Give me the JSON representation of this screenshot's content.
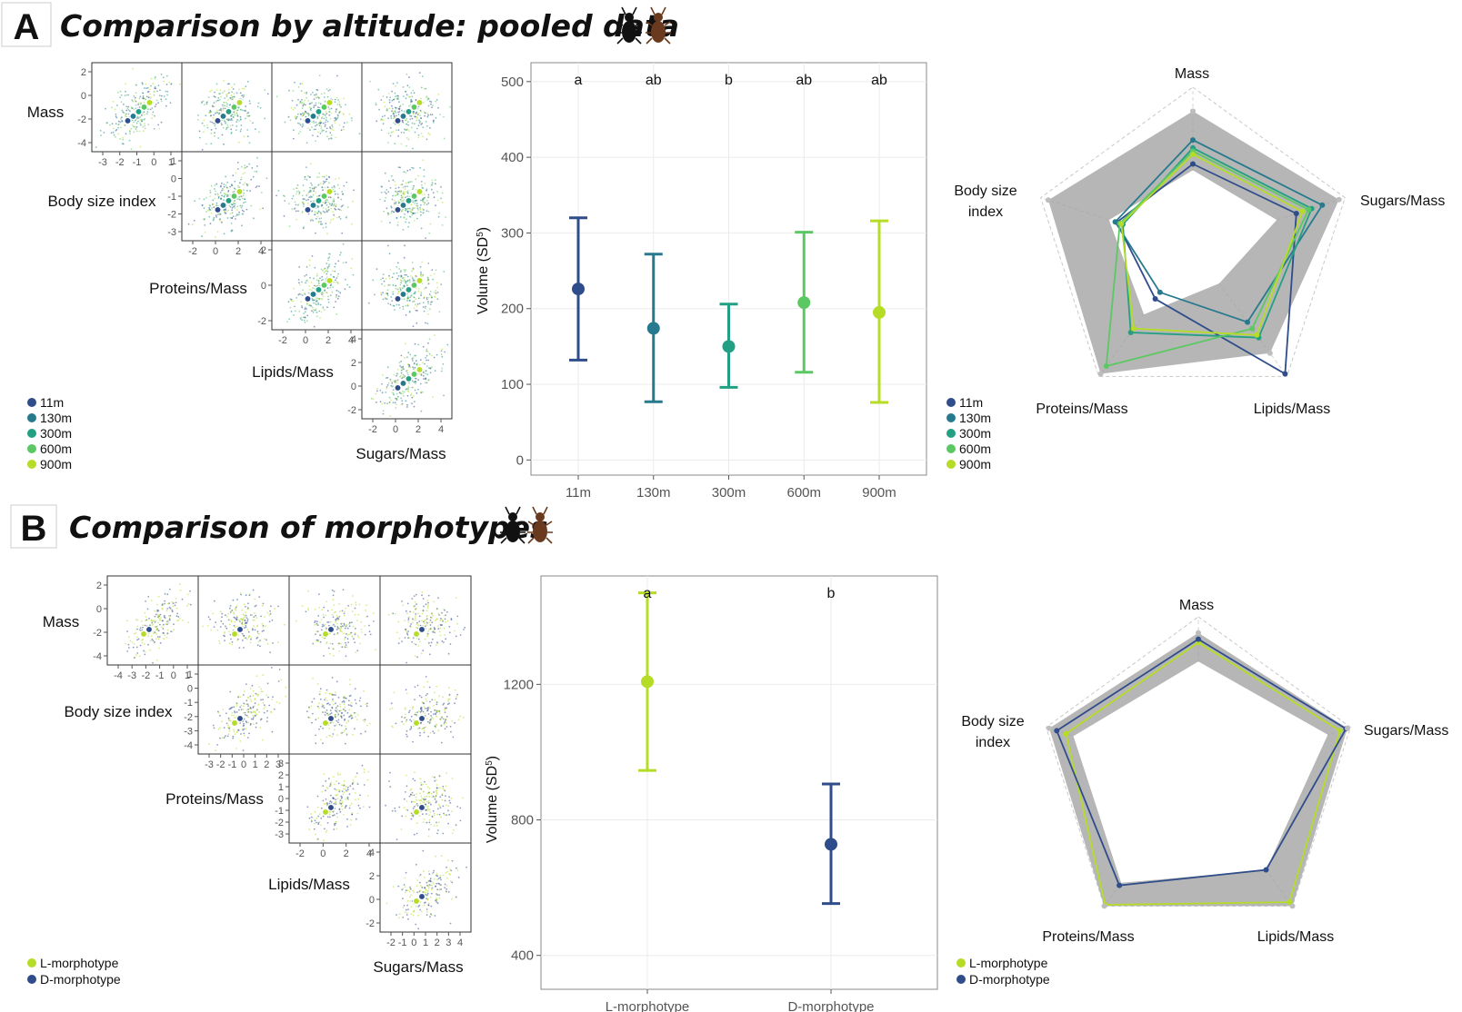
{
  "panels": [
    {
      "letter": "A",
      "title": "Comparison by altitude: pooled data",
      "groups": [
        "11m",
        "130m",
        "300m",
        "600m",
        "900m"
      ],
      "colors": {
        "11m": "#2f4d8a",
        "130m": "#277a8e",
        "300m": "#23a083",
        "600m": "#5cc863",
        "900m": "#b5dc26"
      },
      "variables": [
        "Mass",
        "Body size index",
        "Proteins/Mass",
        "Lipids/Mass",
        "Sugars/Mass"
      ]
    },
    {
      "letter": "B",
      "title": "Comparison of morphotypes",
      "groups": [
        "L-morphotype",
        "D-morphotype"
      ],
      "colors": {
        "L-morphotype": "#b5dc26",
        "D-morphotype": "#2f4d8a"
      },
      "variables": [
        "Mass",
        "Body size index",
        "Proteins/Mass",
        "Lipids/Mass",
        "Sugars/Mass"
      ]
    }
  ],
  "chart_data": [
    {
      "type": "scatter",
      "subtype": "pairs-matrix",
      "panel": "A",
      "variables": [
        "Mass",
        "Body size index",
        "Proteins/Mass",
        "Lipids/Mass",
        "Sugars/Mass"
      ],
      "series_names": [
        "11m",
        "130m",
        "300m",
        "600m",
        "900m"
      ],
      "ticks": {
        "Mass": [
          "2",
          "0",
          "-2",
          "-4"
        ],
        "Body size index": [
          "1",
          "0",
          "-1",
          "-2",
          "-3"
        ],
        "Proteins/Mass": [
          "2",
          "0",
          "-2"
        ],
        "Lipids/Mass": [
          "4",
          "2",
          "0",
          "-2"
        ],
        "x_Mass": [
          "-3",
          "-2",
          "-1",
          "0",
          "1"
        ],
        "x_Body size index": [
          "-2",
          "0",
          "2",
          "4"
        ],
        "x_Proteins/Mass": [
          "-2",
          "0",
          "2",
          "4"
        ],
        "x_Lipids/Mass": [
          "-2",
          "0",
          "2",
          "4"
        ]
      }
    },
    {
      "type": "scatter",
      "subtype": "point-errorbar",
      "panel": "A",
      "categories": [
        "11m",
        "130m",
        "300m",
        "600m",
        "900m"
      ],
      "values": [
        226,
        174,
        150,
        208,
        195
      ],
      "lower": [
        132,
        77,
        96,
        116,
        76
      ],
      "upper": [
        320,
        272,
        206,
        301,
        316
      ],
      "letters": [
        "a",
        "ab",
        "b",
        "ab",
        "ab"
      ],
      "ylabel": "Volume (SD",
      "ylabel_sup": "5",
      "ylabel_end": ")",
      "ylim": [
        -20,
        525
      ],
      "yticks": [
        0,
        100,
        200,
        300,
        400,
        500
      ],
      "grid": true
    },
    {
      "type": "radar",
      "panel": "A",
      "axes": [
        "Mass",
        "Sugars/Mass",
        "Lipids/Mass",
        "Proteins/Mass",
        "Body size index"
      ],
      "band_outer": [
        0.85,
        0.96,
        0.82,
        0.98,
        0.95
      ],
      "band_inner": [
        0.48,
        0.55,
        0.28,
        0.52,
        0.55
      ],
      "series": [
        {
          "name": "11m",
          "values": [
            0.52,
            0.68,
            0.98,
            0.4,
            0.5
          ]
        },
        {
          "name": "130m",
          "values": [
            0.67,
            0.85,
            0.58,
            0.35,
            0.51
          ]
        },
        {
          "name": "300m",
          "values": [
            0.62,
            0.78,
            0.7,
            0.66,
            0.46
          ]
        },
        {
          "name": "600m",
          "values": [
            0.6,
            0.76,
            0.63,
            0.92,
            0.48
          ]
        },
        {
          "name": "900m",
          "values": [
            0.58,
            0.72,
            0.68,
            0.63,
            0.47
          ]
        }
      ]
    },
    {
      "type": "scatter",
      "subtype": "pairs-matrix",
      "panel": "B",
      "variables": [
        "Mass",
        "Body size index",
        "Proteins/Mass",
        "Lipids/Mass",
        "Sugars/Mass"
      ],
      "series_names": [
        "L-morphotype",
        "D-morphotype"
      ],
      "ticks": {
        "Mass": [
          "2",
          "0",
          "-2",
          "-4"
        ],
        "Body size index": [
          "1",
          "0",
          "-1",
          "-2",
          "-3",
          "-4"
        ],
        "Proteins/Mass": [
          "3",
          "2",
          "1",
          "0",
          "-1",
          "-2",
          "-3"
        ],
        "Lipids/Mass": [
          "4",
          "2",
          "0",
          "-2"
        ],
        "x_Mass": [
          "-4",
          "-3",
          "-2",
          "-1",
          "0",
          "1"
        ],
        "x_Body size index": [
          "-3",
          "-2",
          "-1",
          "0",
          "1",
          "2",
          "3"
        ],
        "x_Proteins/Mass": [
          "-2",
          "0",
          "2",
          "4"
        ],
        "x_Lipids/Mass": [
          "-2",
          "-1",
          "0",
          "1",
          "2",
          "3",
          "4"
        ]
      }
    },
    {
      "type": "scatter",
      "subtype": "point-errorbar",
      "panel": "B",
      "categories": [
        "L-morphotype",
        "D-morphotype"
      ],
      "values": [
        1208,
        728
      ],
      "lower": [
        946,
        553
      ],
      "upper": [
        1470,
        906
      ],
      "letters": [
        "a",
        "b"
      ],
      "ylabel": "Volume (SD",
      "ylabel_sup": "5",
      "ylabel_end": ")",
      "ylim": [
        300,
        1520
      ],
      "yticks": [
        400,
        800,
        1200
      ],
      "grid": true
    },
    {
      "type": "radar",
      "panel": "B",
      "axes": [
        "Mass",
        "Sugars/Mass",
        "Lipids/Mass",
        "Proteins/Mass",
        "Body size index"
      ],
      "band_outer": [
        0.9,
        0.98,
        1.0,
        1.0,
        0.98
      ],
      "band_inner": [
        0.72,
        0.85,
        0.72,
        0.82,
        0.82
      ],
      "series": [
        {
          "name": "L-morphotype",
          "values": [
            0.84,
            0.93,
            0.97,
            0.99,
            0.87
          ]
        },
        {
          "name": "D-morphotype",
          "values": [
            0.86,
            0.97,
            0.72,
            0.84,
            0.93
          ]
        }
      ]
    }
  ]
}
